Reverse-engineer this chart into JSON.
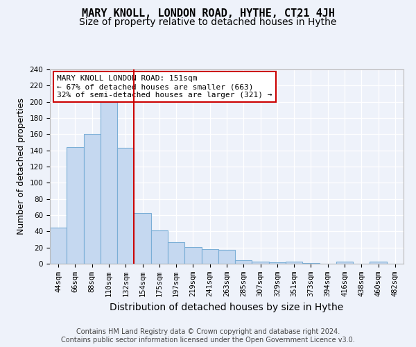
{
  "title": "MARY KNOLL, LONDON ROAD, HYTHE, CT21 4JH",
  "subtitle": "Size of property relative to detached houses in Hythe",
  "xlabel": "Distribution of detached houses by size in Hythe",
  "ylabel": "Number of detached properties",
  "bins": [
    "44sqm",
    "66sqm",
    "88sqm",
    "110sqm",
    "132sqm",
    "154sqm",
    "175sqm",
    "197sqm",
    "219sqm",
    "241sqm",
    "263sqm",
    "285sqm",
    "307sqm",
    "329sqm",
    "351sqm",
    "373sqm",
    "394sqm",
    "416sqm",
    "438sqm",
    "460sqm",
    "482sqm"
  ],
  "values": [
    45,
    144,
    160,
    200,
    143,
    63,
    41,
    27,
    21,
    18,
    17,
    4,
    3,
    2,
    3,
    1,
    0,
    3,
    0,
    3,
    0
  ],
  "bar_color": "#c5d8f0",
  "bar_edge_color": "#7aaed6",
  "highlight_line_color": "#cc0000",
  "annotation_text": "MARY KNOLL LONDON ROAD: 151sqm\n← 67% of detached houses are smaller (663)\n32% of semi-detached houses are larger (321) →",
  "annotation_box_color": "#ffffff",
  "annotation_box_edge": "#cc0000",
  "footer_text": "Contains HM Land Registry data © Crown copyright and database right 2024.\nContains public sector information licensed under the Open Government Licence v3.0.",
  "ylim": [
    0,
    240
  ],
  "yticks": [
    0,
    20,
    40,
    60,
    80,
    100,
    120,
    140,
    160,
    180,
    200,
    220,
    240
  ],
  "background_color": "#eef2fa",
  "plot_background": "#eef2fa",
  "grid_color": "#ffffff",
  "title_fontsize": 11,
  "subtitle_fontsize": 10,
  "tick_fontsize": 7.5,
  "ylabel_fontsize": 9,
  "xlabel_fontsize": 10,
  "footer_fontsize": 7,
  "annotation_fontsize": 8
}
